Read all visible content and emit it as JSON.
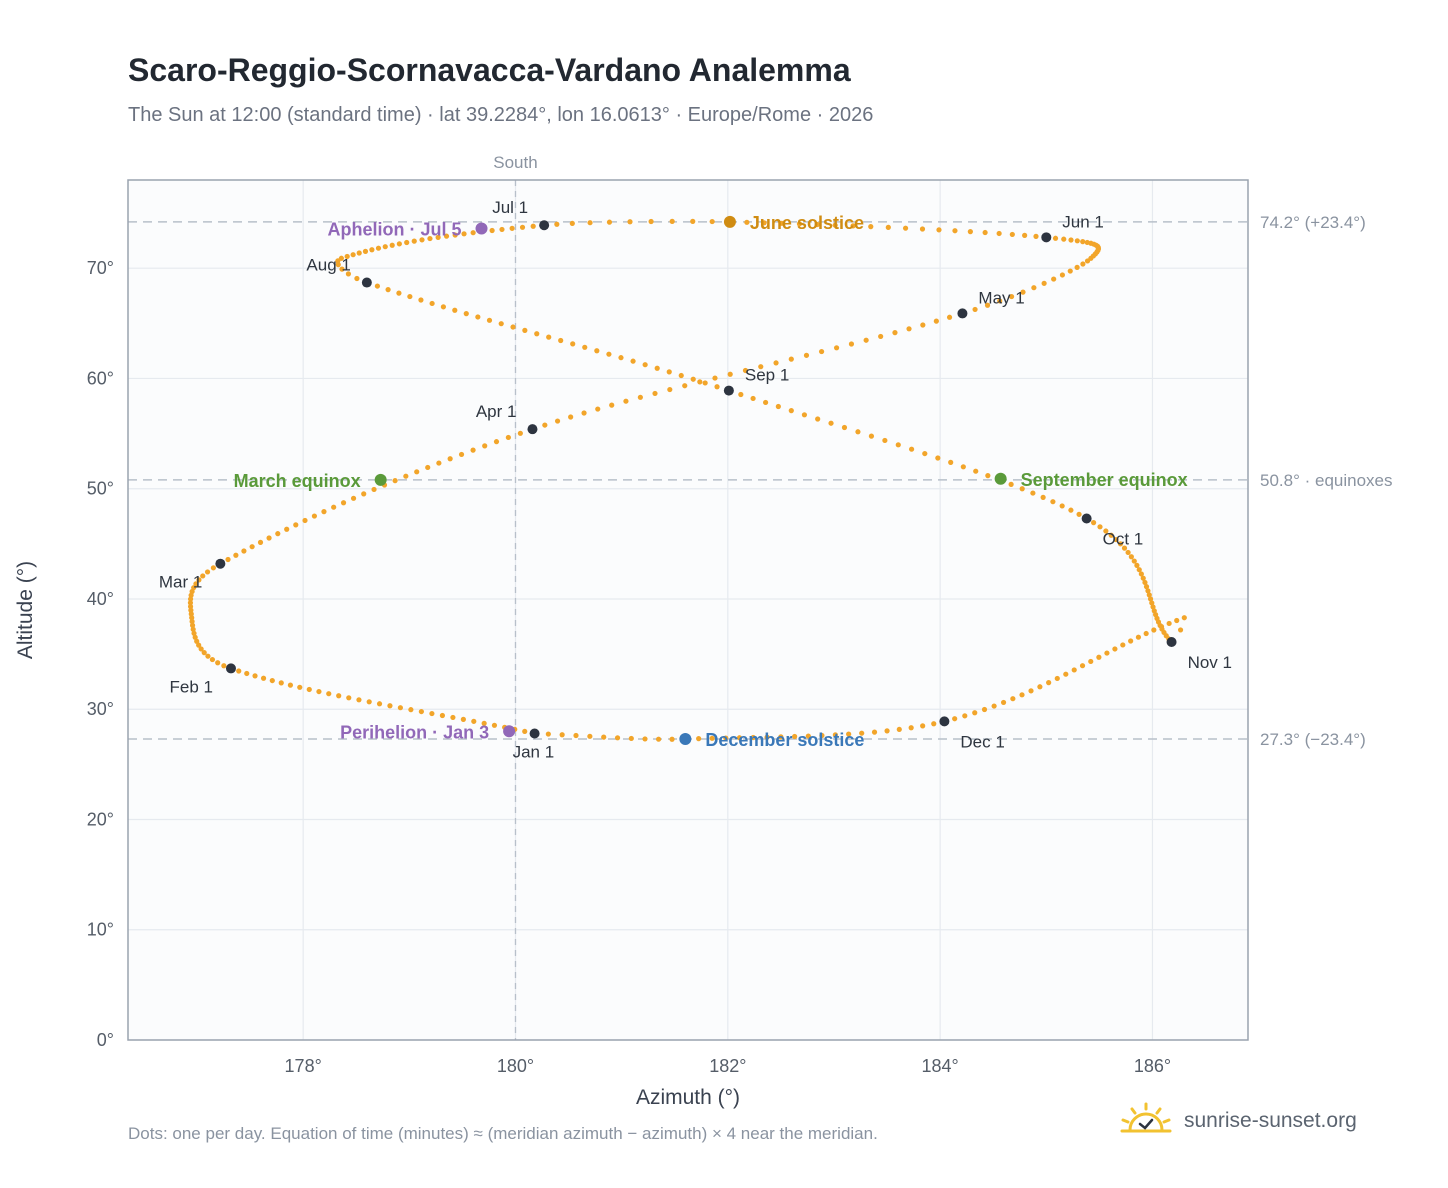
{
  "title": "Scaro-Reggio-Scornavacca-Vardano Analemma",
  "subtitle": "The Sun at 12:00 (standard time) · lat 39.2284°, lon 16.0613° · Europe/Rome · 2026",
  "footnote": "Dots: one per day. Equation of time (minutes) ≈ (meridian azimuth − azimuth) × 4 near the meridian.",
  "brand": {
    "text": "sunrise-sunset.org",
    "icon": "sun-logo-icon"
  },
  "colors": {
    "path": "#f2a52a",
    "month_dot": "#2d3440",
    "june_solstice": "#d08c12",
    "december_solstice": "#3a78b8",
    "equinox": "#5a9a3a",
    "apsis": "#9168b8",
    "grid": "#e6eaef",
    "reference": "#b8c0ca",
    "frame": "#9aa3af",
    "plot_bg": "#fbfcfd"
  },
  "chart_data": {
    "type": "scatter",
    "xlabel": "Azimuth (°)",
    "ylabel": "Altitude (°)",
    "xlim": [
      176.35,
      186.9
    ],
    "ylim": [
      0,
      78
    ],
    "x_ticks": [
      "178°",
      "180°",
      "182°",
      "184°",
      "186°"
    ],
    "x_tick_values": [
      178,
      180,
      182,
      184,
      186
    ],
    "y_ticks": [
      "0°",
      "10°",
      "20°",
      "30°",
      "40°",
      "50°",
      "60°",
      "70°"
    ],
    "y_tick_values": [
      0,
      10,
      20,
      30,
      40,
      50,
      60,
      70
    ],
    "grid": true,
    "meridian": {
      "label": "South",
      "azimuth": 180.0
    },
    "reference_lines": [
      {
        "altitude": 74.2,
        "label": "74.2° (+23.4°)"
      },
      {
        "altitude": 50.8,
        "label": "50.8° · equinoxes"
      },
      {
        "altitude": 27.3,
        "label": "27.3° (−23.4°)"
      }
    ],
    "daily_path": {
      "name": "",
      "anchors": [
        [
          1,
          180.18,
          27.8
        ],
        [
          32,
          177.32,
          33.7
        ],
        [
          60,
          177.22,
          43.2
        ],
        [
          91,
          180.16,
          55.4
        ],
        [
          121,
          184.21,
          65.9
        ],
        [
          152,
          185.0,
          72.8
        ],
        [
          172,
          182.02,
          74.2
        ],
        [
          182,
          180.27,
          73.9
        ],
        [
          213,
          178.6,
          68.7
        ],
        [
          244,
          182.01,
          58.9
        ],
        [
          274,
          185.38,
          47.3
        ],
        [
          305,
          186.18,
          36.1
        ],
        [
          335,
          184.04,
          28.9
        ],
        [
          355,
          181.6,
          27.3
        ],
        [
          366,
          180.18,
          27.8
        ]
      ],
      "extremes": [
        {
          "day": 46,
          "azimuth": 176.95,
          "altitude": 38.3
        },
        {
          "day": 135,
          "azimuth": 185.42,
          "altitude": 70.9
        },
        {
          "day": 207,
          "azimuth": 178.36,
          "altitude": 70.9
        },
        {
          "day": 307,
          "azimuth": 186.3,
          "altitude": 38.3
        }
      ]
    },
    "months": [
      {
        "label": "Jan 1",
        "azimuth": 180.18,
        "altitude": 27.8,
        "anchor": "below"
      },
      {
        "label": "Feb 1",
        "azimuth": 177.32,
        "altitude": 33.7,
        "anchor": "below-left"
      },
      {
        "label": "Mar 1",
        "azimuth": 177.22,
        "altitude": 43.2,
        "anchor": "below-left"
      },
      {
        "label": "Apr 1",
        "azimuth": 180.16,
        "altitude": 55.4,
        "anchor": "above-left"
      },
      {
        "label": "May 1",
        "azimuth": 184.21,
        "altitude": 65.9,
        "anchor": "above-right"
      },
      {
        "label": "Jun 1",
        "azimuth": 185.0,
        "altitude": 72.8,
        "anchor": "above-right"
      },
      {
        "label": "Jul 1",
        "azimuth": 180.27,
        "altitude": 73.9,
        "anchor": "above-left"
      },
      {
        "label": "Aug 1",
        "azimuth": 178.6,
        "altitude": 68.7,
        "anchor": "above-left"
      },
      {
        "label": "Sep 1",
        "azimuth": 182.01,
        "altitude": 58.9,
        "anchor": "above-right"
      },
      {
        "label": "Oct 1",
        "azimuth": 185.38,
        "altitude": 47.3,
        "anchor": "below-right"
      },
      {
        "label": "Nov 1",
        "azimuth": 186.18,
        "altitude": 36.1,
        "anchor": "below-right"
      },
      {
        "label": "Dec 1",
        "azimuth": 184.04,
        "altitude": 28.9,
        "anchor": "below-right"
      }
    ],
    "events": [
      {
        "label": "June solstice",
        "azimuth": 182.02,
        "altitude": 74.2,
        "color_key": "june_solstice",
        "side": "right"
      },
      {
        "label": "December solstice",
        "azimuth": 181.6,
        "altitude": 27.3,
        "color_key": "december_solstice",
        "side": "right"
      },
      {
        "label": "March equinox",
        "azimuth": 178.73,
        "altitude": 50.8,
        "color_key": "equinox",
        "side": "left"
      },
      {
        "label": "September equinox",
        "azimuth": 184.57,
        "altitude": 50.9,
        "color_key": "equinox",
        "side": "right"
      },
      {
        "label": "Aphelion · Jul 5",
        "azimuth": 179.68,
        "altitude": 73.6,
        "color_key": "apsis",
        "side": "left"
      },
      {
        "label": "Perihelion · Jan 3",
        "azimuth": 179.94,
        "altitude": 28.0,
        "color_key": "apsis",
        "side": "left"
      }
    ]
  }
}
